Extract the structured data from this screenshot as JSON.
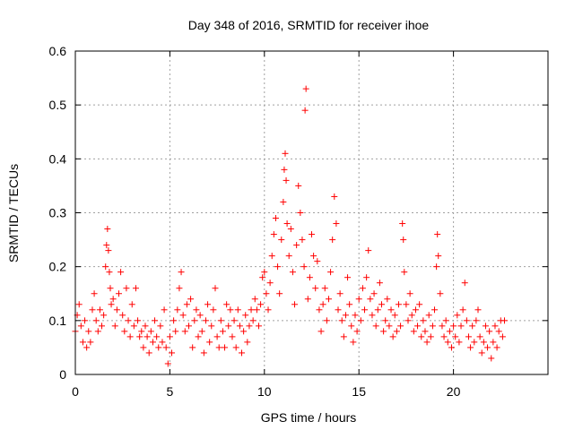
{
  "chart_data": {
    "type": "scatter",
    "title": "Day 348 of 2016, SRMTID for receiver ihoe",
    "xlabel": "GPS time / hours",
    "ylabel": "SRMTID / TECUs",
    "xlim": [
      0,
      25
    ],
    "ylim": [
      0,
      0.6
    ],
    "x_ticks": [
      0,
      5,
      10,
      15,
      20
    ],
    "y_ticks": [
      0,
      0.1,
      0.2,
      0.3,
      0.4,
      0.5,
      0.6
    ],
    "x_tick_labels": [
      "0",
      "5",
      "10",
      "15",
      "20"
    ],
    "y_tick_labels": [
      "0",
      "0.1",
      "0.2",
      "0.3",
      "0.4",
      "0.5",
      "0.6"
    ],
    "grid": true,
    "marker": "+",
    "series_color": "#ff0000",
    "series": [
      {
        "name": "SRMTID",
        "points": [
          [
            0.0,
            0.08
          ],
          [
            0.1,
            0.11
          ],
          [
            0.2,
            0.13
          ],
          [
            0.3,
            0.09
          ],
          [
            0.4,
            0.06
          ],
          [
            0.5,
            0.1
          ],
          [
            0.6,
            0.05
          ],
          [
            0.7,
            0.08
          ],
          [
            0.8,
            0.06
          ],
          [
            0.9,
            0.12
          ],
          [
            1.0,
            0.15
          ],
          [
            1.1,
            0.1
          ],
          [
            1.2,
            0.08
          ],
          [
            1.3,
            0.12
          ],
          [
            1.4,
            0.09
          ],
          [
            1.5,
            0.11
          ],
          [
            1.6,
            0.2
          ],
          [
            1.65,
            0.24
          ],
          [
            1.7,
            0.27
          ],
          [
            1.75,
            0.23
          ],
          [
            1.8,
            0.19
          ],
          [
            1.85,
            0.16
          ],
          [
            1.9,
            0.13
          ],
          [
            2.0,
            0.14
          ],
          [
            2.1,
            0.09
          ],
          [
            2.2,
            0.12
          ],
          [
            2.3,
            0.15
          ],
          [
            2.4,
            0.19
          ],
          [
            2.5,
            0.11
          ],
          [
            2.6,
            0.08
          ],
          [
            2.7,
            0.16
          ],
          [
            2.8,
            0.1
          ],
          [
            2.9,
            0.07
          ],
          [
            3.0,
            0.13
          ],
          [
            3.1,
            0.09
          ],
          [
            3.2,
            0.16
          ],
          [
            3.3,
            0.1
          ],
          [
            3.4,
            0.07
          ],
          [
            3.5,
            0.08
          ],
          [
            3.6,
            0.05
          ],
          [
            3.7,
            0.09
          ],
          [
            3.8,
            0.07
          ],
          [
            3.9,
            0.04
          ],
          [
            4.0,
            0.08
          ],
          [
            4.1,
            0.06
          ],
          [
            4.2,
            0.1
          ],
          [
            4.3,
            0.07
          ],
          [
            4.4,
            0.05
          ],
          [
            4.5,
            0.09
          ],
          [
            4.6,
            0.06
          ],
          [
            4.7,
            0.12
          ],
          [
            4.8,
            0.05
          ],
          [
            4.9,
            0.02
          ],
          [
            5.0,
            0.07
          ],
          [
            5.1,
            0.04
          ],
          [
            5.2,
            0.1
          ],
          [
            5.3,
            0.08
          ],
          [
            5.4,
            0.12
          ],
          [
            5.5,
            0.16
          ],
          [
            5.6,
            0.19
          ],
          [
            5.7,
            0.11
          ],
          [
            5.8,
            0.08
          ],
          [
            5.9,
            0.13
          ],
          [
            6.0,
            0.09
          ],
          [
            6.1,
            0.14
          ],
          [
            6.2,
            0.05
          ],
          [
            6.3,
            0.1
          ],
          [
            6.4,
            0.12
          ],
          [
            6.5,
            0.07
          ],
          [
            6.6,
            0.11
          ],
          [
            6.7,
            0.08
          ],
          [
            6.8,
            0.04
          ],
          [
            6.9,
            0.1
          ],
          [
            7.0,
            0.13
          ],
          [
            7.1,
            0.06
          ],
          [
            7.2,
            0.09
          ],
          [
            7.3,
            0.12
          ],
          [
            7.4,
            0.16
          ],
          [
            7.5,
            0.07
          ],
          [
            7.6,
            0.05
          ],
          [
            7.7,
            0.1
          ],
          [
            7.8,
            0.08
          ],
          [
            7.9,
            0.05
          ],
          [
            8.0,
            0.13
          ],
          [
            8.1,
            0.09
          ],
          [
            8.2,
            0.12
          ],
          [
            8.3,
            0.07
          ],
          [
            8.4,
            0.1
          ],
          [
            8.5,
            0.05
          ],
          [
            8.6,
            0.12
          ],
          [
            8.7,
            0.09
          ],
          [
            8.8,
            0.04
          ],
          [
            8.9,
            0.08
          ],
          [
            9.0,
            0.11
          ],
          [
            9.1,
            0.06
          ],
          [
            9.2,
            0.09
          ],
          [
            9.3,
            0.12
          ],
          [
            9.4,
            0.1
          ],
          [
            9.5,
            0.14
          ],
          [
            9.6,
            0.12
          ],
          [
            9.7,
            0.09
          ],
          [
            9.8,
            0.13
          ],
          [
            9.9,
            0.18
          ],
          [
            10.0,
            0.19
          ],
          [
            10.1,
            0.15
          ],
          [
            10.2,
            0.12
          ],
          [
            10.3,
            0.17
          ],
          [
            10.4,
            0.22
          ],
          [
            10.5,
            0.26
          ],
          [
            10.6,
            0.29
          ],
          [
            10.7,
            0.2
          ],
          [
            10.8,
            0.15
          ],
          [
            10.9,
            0.25
          ],
          [
            11.0,
            0.32
          ],
          [
            11.05,
            0.38
          ],
          [
            11.1,
            0.41
          ],
          [
            11.15,
            0.36
          ],
          [
            11.2,
            0.28
          ],
          [
            11.3,
            0.22
          ],
          [
            11.4,
            0.27
          ],
          [
            11.5,
            0.19
          ],
          [
            11.6,
            0.13
          ],
          [
            11.7,
            0.24
          ],
          [
            11.8,
            0.35
          ],
          [
            11.9,
            0.3
          ],
          [
            12.0,
            0.25
          ],
          [
            12.1,
            0.2
          ],
          [
            12.15,
            0.49
          ],
          [
            12.2,
            0.53
          ],
          [
            12.3,
            0.14
          ],
          [
            12.4,
            0.18
          ],
          [
            12.5,
            0.26
          ],
          [
            12.6,
            0.22
          ],
          [
            12.7,
            0.16
          ],
          [
            12.8,
            0.21
          ],
          [
            12.9,
            0.12
          ],
          [
            13.0,
            0.08
          ],
          [
            13.1,
            0.13
          ],
          [
            13.2,
            0.16
          ],
          [
            13.3,
            0.1
          ],
          [
            13.4,
            0.14
          ],
          [
            13.5,
            0.19
          ],
          [
            13.6,
            0.25
          ],
          [
            13.7,
            0.33
          ],
          [
            13.8,
            0.28
          ],
          [
            13.9,
            0.12
          ],
          [
            14.0,
            0.15
          ],
          [
            14.1,
            0.1
          ],
          [
            14.2,
            0.07
          ],
          [
            14.3,
            0.11
          ],
          [
            14.4,
            0.18
          ],
          [
            14.5,
            0.13
          ],
          [
            14.6,
            0.09
          ],
          [
            14.7,
            0.06
          ],
          [
            14.8,
            0.11
          ],
          [
            14.9,
            0.08
          ],
          [
            15.0,
            0.14
          ],
          [
            15.1,
            0.1
          ],
          [
            15.2,
            0.16
          ],
          [
            15.3,
            0.12
          ],
          [
            15.4,
            0.18
          ],
          [
            15.5,
            0.23
          ],
          [
            15.6,
            0.14
          ],
          [
            15.7,
            0.11
          ],
          [
            15.8,
            0.15
          ],
          [
            15.9,
            0.09
          ],
          [
            16.0,
            0.12
          ],
          [
            16.1,
            0.17
          ],
          [
            16.2,
            0.13
          ],
          [
            16.3,
            0.08
          ],
          [
            16.4,
            0.1
          ],
          [
            16.5,
            0.14
          ],
          [
            16.6,
            0.09
          ],
          [
            16.7,
            0.12
          ],
          [
            16.8,
            0.07
          ],
          [
            16.9,
            0.11
          ],
          [
            17.0,
            0.08
          ],
          [
            17.1,
            0.13
          ],
          [
            17.2,
            0.09
          ],
          [
            17.3,
            0.28
          ],
          [
            17.35,
            0.25
          ],
          [
            17.4,
            0.19
          ],
          [
            17.5,
            0.13
          ],
          [
            17.6,
            0.1
          ],
          [
            17.7,
            0.15
          ],
          [
            17.8,
            0.11
          ],
          [
            17.9,
            0.08
          ],
          [
            18.0,
            0.12
          ],
          [
            18.1,
            0.09
          ],
          [
            18.2,
            0.13
          ],
          [
            18.3,
            0.07
          ],
          [
            18.4,
            0.1
          ],
          [
            18.5,
            0.08
          ],
          [
            18.6,
            0.06
          ],
          [
            18.7,
            0.11
          ],
          [
            18.8,
            0.07
          ],
          [
            18.9,
            0.09
          ],
          [
            19.0,
            0.12
          ],
          [
            19.1,
            0.2
          ],
          [
            19.15,
            0.26
          ],
          [
            19.2,
            0.22
          ],
          [
            19.3,
            0.15
          ],
          [
            19.4,
            0.09
          ],
          [
            19.5,
            0.07
          ],
          [
            19.6,
            0.1
          ],
          [
            19.7,
            0.06
          ],
          [
            19.8,
            0.08
          ],
          [
            19.9,
            0.05
          ],
          [
            20.0,
            0.09
          ],
          [
            20.1,
            0.07
          ],
          [
            20.2,
            0.11
          ],
          [
            20.3,
            0.06
          ],
          [
            20.4,
            0.09
          ],
          [
            20.5,
            0.12
          ],
          [
            20.6,
            0.17
          ],
          [
            20.7,
            0.1
          ],
          [
            20.8,
            0.07
          ],
          [
            20.9,
            0.05
          ],
          [
            21.0,
            0.09
          ],
          [
            21.1,
            0.06
          ],
          [
            21.2,
            0.1
          ],
          [
            21.3,
            0.12
          ],
          [
            21.4,
            0.07
          ],
          [
            21.5,
            0.04
          ],
          [
            21.6,
            0.06
          ],
          [
            21.7,
            0.09
          ],
          [
            21.8,
            0.05
          ],
          [
            21.9,
            0.08
          ],
          [
            22.0,
            0.03
          ],
          [
            22.1,
            0.06
          ],
          [
            22.2,
            0.09
          ],
          [
            22.3,
            0.05
          ],
          [
            22.4,
            0.08
          ],
          [
            22.5,
            0.1
          ],
          [
            22.6,
            0.07
          ],
          [
            22.7,
            0.1
          ]
        ]
      }
    ]
  }
}
